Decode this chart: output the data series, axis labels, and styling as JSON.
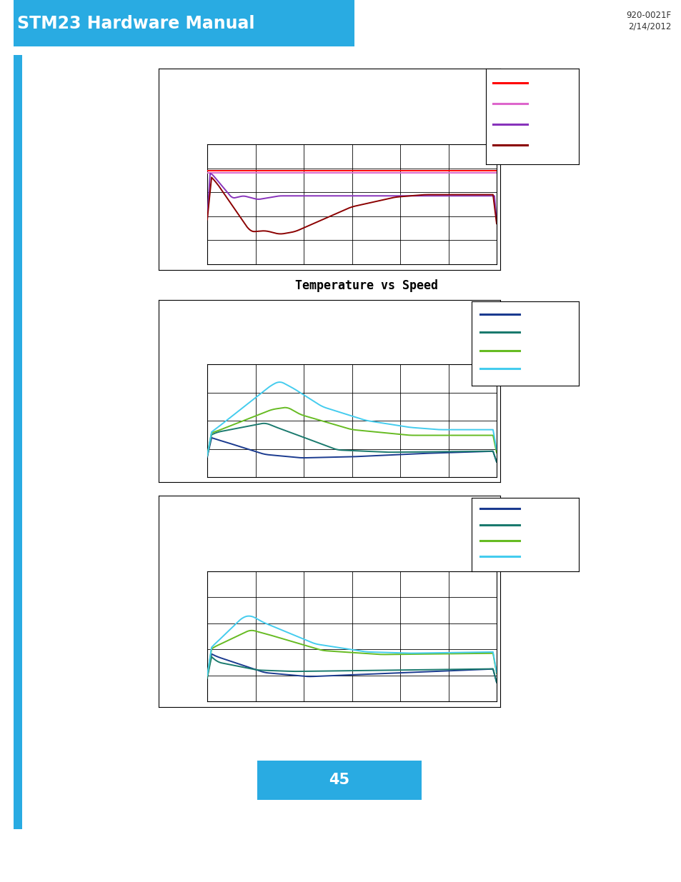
{
  "page_bg": "#ffffff",
  "header_bar_color": "#29abe2",
  "header_text": "STM23 Hardware Manual",
  "header_text_color": "#ffffff",
  "header_right_text": "920-0021F\n2/14/2012",
  "header_right_color": "#333333",
  "page_number": "45",
  "page_number_bg": "#29abe2",
  "page_number_text_color": "#ffffff",
  "left_accent_color": "#29abe2",
  "title_middle": "Temperature vs Speed",
  "chart1_legend_colors": [
    "#ff0000",
    "#dd66cc",
    "#8833bb",
    "#8b0000"
  ],
  "chart2_legend_colors": [
    "#1a3a8f",
    "#1a7a6e",
    "#66bb22",
    "#44ccee"
  ],
  "chart3_legend_colors": [
    "#1a3a8f",
    "#1a7a6e",
    "#66bb22",
    "#44ccee"
  ]
}
